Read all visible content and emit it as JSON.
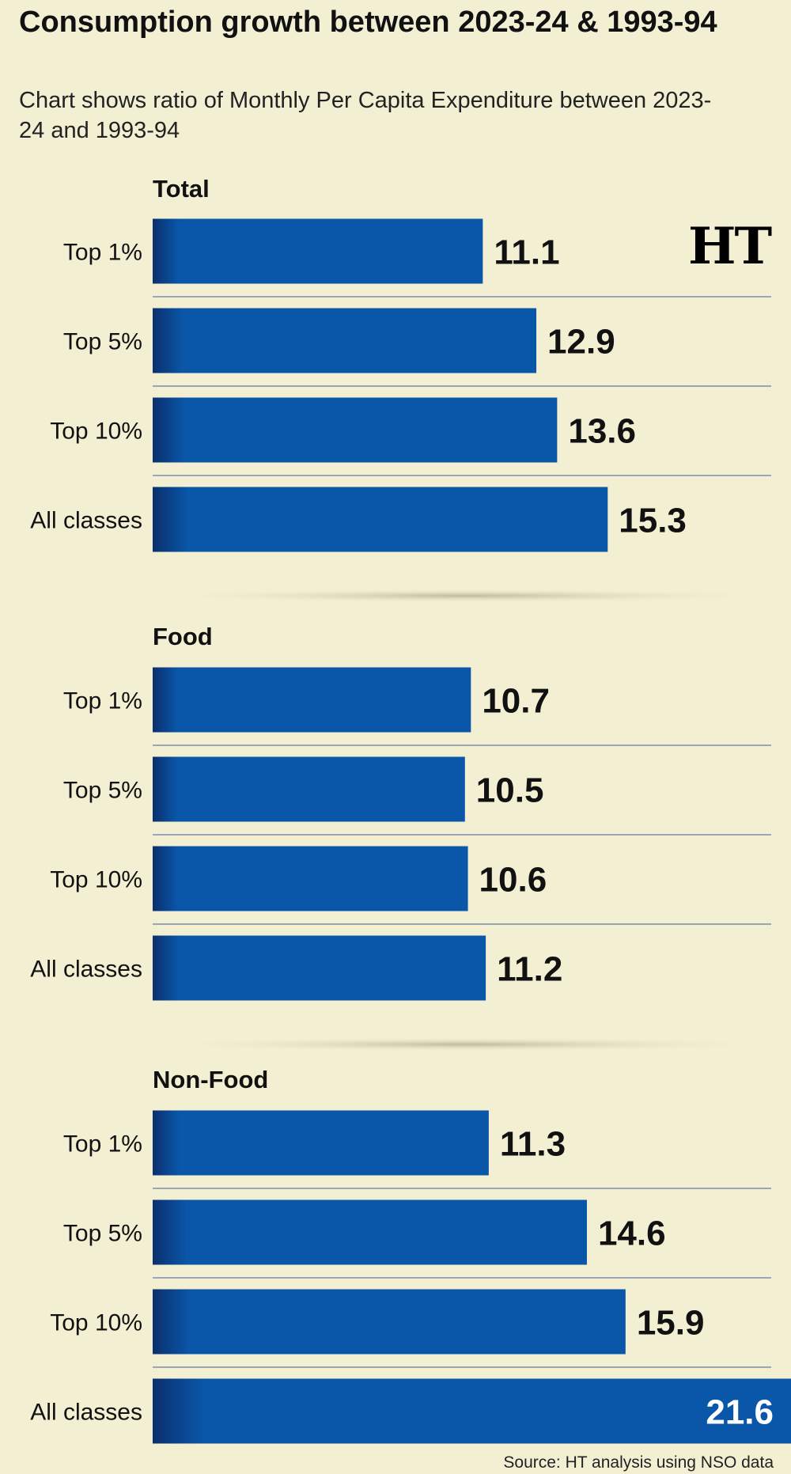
{
  "header": {
    "title": "Consumption growth between 2023-24 & 1993-94",
    "subtitle": "Chart shows ratio of Monthly Per Capita Expenditure between 2023-24 and 1993-94"
  },
  "logo_text": "HT",
  "source": "Source: HT analysis using NSO data",
  "colors": {
    "bar": "#0a57a9",
    "bar_shadow": "#0b2f6e",
    "background": "#f3efd3",
    "row_divider": "#9aa6b4"
  },
  "chart_data": [
    {
      "type": "bar",
      "orientation": "horizontal",
      "panel": "Total",
      "categories": [
        "Top 1%",
        "Top 5%",
        "Top 10%",
        "All classes"
      ],
      "values": [
        11.1,
        12.9,
        13.6,
        15.3
      ],
      "value_labels": [
        "11.1",
        "12.9",
        "13.6",
        "15.3"
      ]
    },
    {
      "type": "bar",
      "orientation": "horizontal",
      "panel": "Food",
      "categories": [
        "Top 1%",
        "Top 5%",
        "Top 10%",
        "All classes"
      ],
      "values": [
        10.7,
        10.5,
        10.6,
        11.2
      ],
      "value_labels": [
        "10.7",
        "10.5",
        "10.6",
        "11.2"
      ]
    },
    {
      "type": "bar",
      "orientation": "horizontal",
      "panel": "Non-Food",
      "categories": [
        "Top 1%",
        "Top 5%",
        "Top 10%",
        "All classes"
      ],
      "values": [
        11.3,
        14.6,
        15.9,
        21.6
      ],
      "value_labels": [
        "11.3",
        "14.6",
        "15.9",
        "21.6"
      ]
    }
  ]
}
